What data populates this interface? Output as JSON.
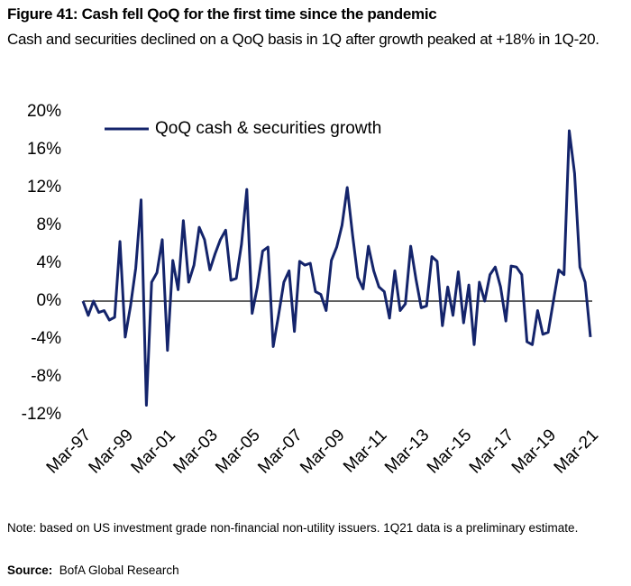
{
  "chart_data": {
    "type": "line",
    "title": "Figure 41: Cash fell QoQ for the first time since the pandemic",
    "subtitle": "Cash and securities declined on a QoQ basis in 1Q after growth peaked at +18% in 1Q-20.",
    "note": "Note: based on US investment grade non-financial non-utility issuers. 1Q21 data is a preliminary estimate.",
    "source_label": "Source:",
    "source": "BofA Global Research",
    "categories": [
      "Mar-97",
      null,
      null,
      null,
      null,
      null,
      null,
      null,
      "Mar-99",
      null,
      null,
      null,
      null,
      null,
      null,
      null,
      "Mar-01",
      null,
      null,
      null,
      null,
      null,
      null,
      null,
      "Mar-03",
      null,
      null,
      null,
      null,
      null,
      null,
      null,
      "Mar-05",
      null,
      null,
      null,
      null,
      null,
      null,
      null,
      "Mar-07",
      null,
      null,
      null,
      null,
      null,
      null,
      null,
      "Mar-09",
      null,
      null,
      null,
      null,
      null,
      null,
      null,
      "Mar-11",
      null,
      null,
      null,
      null,
      null,
      null,
      null,
      "Mar-13",
      null,
      null,
      null,
      null,
      null,
      null,
      null,
      "Mar-15",
      null,
      null,
      null,
      null,
      null,
      null,
      null,
      "Mar-17",
      null,
      null,
      null,
      null,
      null,
      null,
      null,
      "Mar-19",
      null,
      null,
      null,
      null,
      null,
      null,
      null,
      "Mar-21"
    ],
    "series": [
      {
        "name": "QoQ cash & securities growth",
        "color": "#14246b",
        "values": [
          0,
          -1.5,
          0,
          -1.2,
          -1,
          -2,
          -1.7,
          6.3,
          -3.8,
          -0.5,
          3.5,
          10.7,
          -11,
          2,
          3,
          6.5,
          -5.2,
          4.3,
          1.2,
          8.5,
          2,
          3.8,
          7.8,
          6.5,
          3.3,
          5,
          6.5,
          7.5,
          2.2,
          2.4,
          6,
          11.8,
          -1.3,
          1.5,
          5.3,
          5.7,
          -4.8,
          -1.5,
          2,
          3.2,
          -3.2,
          4.2,
          3.8,
          4,
          1,
          0.7,
          -1,
          4.3,
          5.7,
          8,
          12,
          7,
          2.5,
          1.3,
          5.8,
          3.2,
          1.5,
          1,
          -1.8,
          3.2,
          -1,
          -0.3,
          5.8,
          2.3,
          -0.7,
          -0.5,
          4.7,
          4.2,
          -2.6,
          1.5,
          -1.5,
          3.1,
          -2.3,
          1.7,
          -4.6,
          2,
          0,
          2.8,
          3.6,
          1.5,
          -2.1,
          3.7,
          3.6,
          2.8,
          -4.3,
          -4.6,
          -1,
          -3.5,
          -3.3,
          0,
          3.3,
          2.8,
          18,
          13.5,
          3.6,
          2,
          -3.8
        ]
      }
    ],
    "ylim": [
      -12,
      20
    ],
    "yticks": [
      {
        "value": -12,
        "label": "-12%"
      },
      {
        "value": -8,
        "label": "-8%"
      },
      {
        "value": -4,
        "label": "-4%"
      },
      {
        "value": 0,
        "label": "0%"
      },
      {
        "value": 4,
        "label": "4%"
      },
      {
        "value": 8,
        "label": "8%"
      },
      {
        "value": 12,
        "label": "12%"
      },
      {
        "value": 16,
        "label": "16%"
      },
      {
        "value": 20,
        "label": "20%"
      }
    ],
    "grid": false,
    "legend": "top-left"
  }
}
